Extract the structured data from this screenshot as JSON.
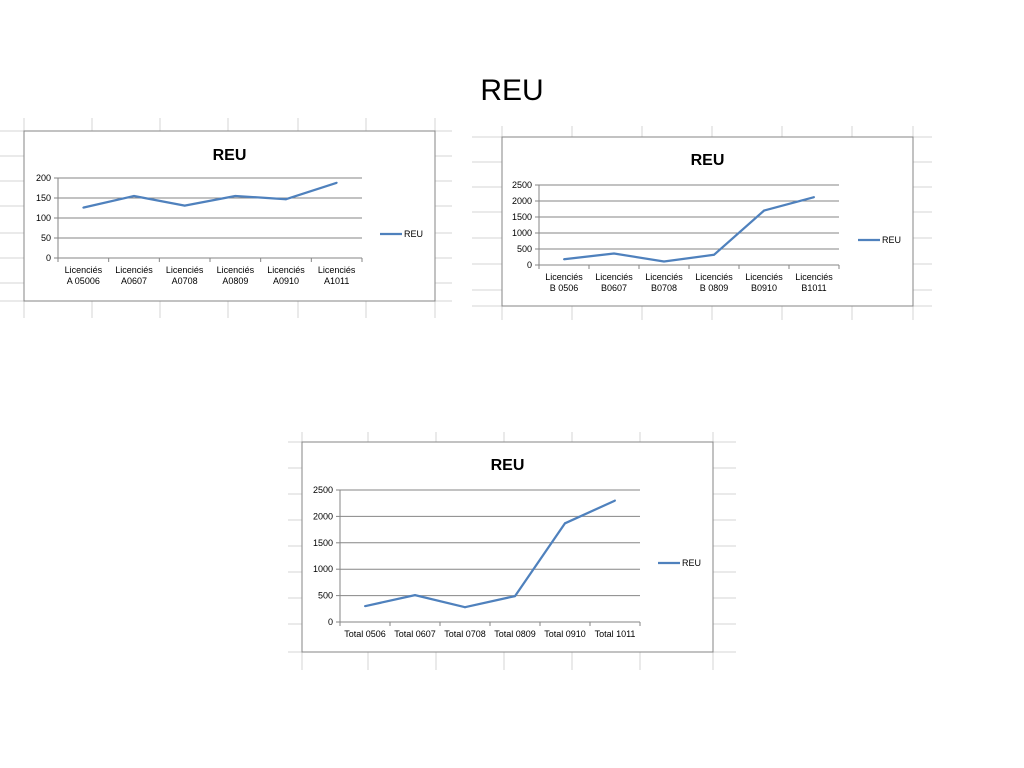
{
  "slide": {
    "title": "REU"
  },
  "chart_data": [
    {
      "type": "line",
      "title": "REU",
      "categories": [
        [
          "Licenciés",
          "A 05006"
        ],
        [
          "Licenciés",
          "A0607"
        ],
        [
          "Licenciés",
          "A0708"
        ],
        [
          "Licenciés",
          "A0809"
        ],
        [
          "Licenciés",
          "A0910"
        ],
        [
          "Licenciés",
          "A1011"
        ]
      ],
      "series": [
        {
          "name": "REU",
          "values": [
            126,
            155,
            131,
            155,
            147,
            188
          ]
        }
      ],
      "yticks": [
        "0",
        "50",
        "100",
        "150",
        "200"
      ],
      "ylim": [
        0,
        200
      ],
      "grid": true,
      "legend": "right",
      "colors": {
        "line": "#4f81bd",
        "grid": "#868686",
        "border": "#868686",
        "text": "#000000",
        "sheet": "#d4d4d4"
      }
    },
    {
      "type": "line",
      "title": "REU",
      "categories": [
        [
          "Licenciés",
          "B 0506"
        ],
        [
          "Licenciés",
          "B0607"
        ],
        [
          "Licenciés",
          "B0708"
        ],
        [
          "Licenciés",
          "B 0809"
        ],
        [
          "Licenciés",
          "B0910"
        ],
        [
          "Licenciés",
          "B1011"
        ]
      ],
      "series": [
        {
          "name": "REU",
          "values": [
            180,
            360,
            110,
            320,
            1700,
            2120
          ]
        }
      ],
      "yticks": [
        "0",
        "500",
        "1000",
        "1500",
        "2000",
        "2500"
      ],
      "ylim": [
        0,
        2500
      ],
      "grid": true,
      "legend": "right",
      "colors": {
        "line": "#4f81bd",
        "grid": "#868686",
        "border": "#868686",
        "text": "#000000",
        "sheet": "#d4d4d4"
      }
    },
    {
      "type": "line",
      "title": "REU",
      "categories": [
        [
          "Total 0506"
        ],
        [
          "Total 0607"
        ],
        [
          "Total 0708"
        ],
        [
          "Total 0809"
        ],
        [
          "Total 0910"
        ],
        [
          "Total 1011"
        ]
      ],
      "series": [
        {
          "name": "REU",
          "values": [
            300,
            510,
            280,
            490,
            1870,
            2300
          ]
        }
      ],
      "yticks": [
        "0",
        "500",
        "1000",
        "1500",
        "2000",
        "2500"
      ],
      "ylim": [
        0,
        2500
      ],
      "grid": true,
      "legend": "right",
      "colors": {
        "line": "#4f81bd",
        "grid": "#868686",
        "border": "#868686",
        "text": "#000000",
        "sheet": "#d4d4d4"
      }
    }
  ]
}
